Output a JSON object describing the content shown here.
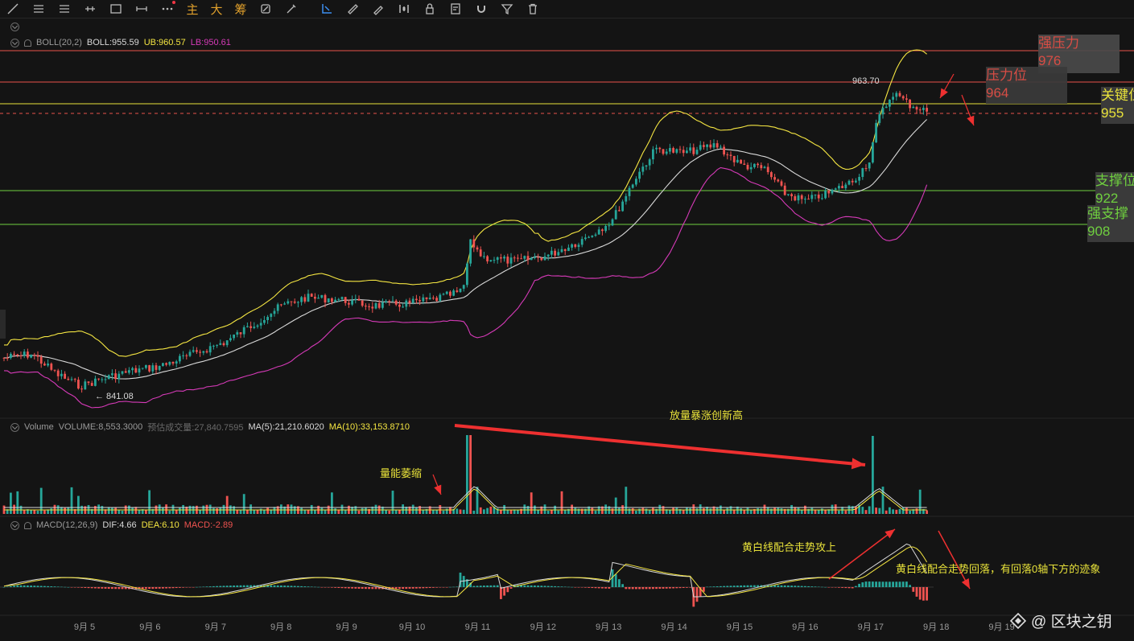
{
  "toolbar": {
    "icons": [
      "trend-line-icon",
      "horizontal-lines-icon",
      "parallel-lines-icon",
      "cross-line-icon",
      "rectangle-icon",
      "range-icon",
      "more-icon",
      "main-chart-text",
      "large-text",
      "chips-text",
      "replay-icon",
      "brush-icon",
      "select-icon",
      "ruler-icon",
      "draw-icon",
      "indicator-icon",
      "lock-icon",
      "template-icon",
      "magnet-icon",
      "filter-icon",
      "delete-icon"
    ],
    "main_label": "主",
    "big_label": "大",
    "chips_label": "筹"
  },
  "boll": {
    "name": "BOLL(20,2)",
    "boll": "BOLL:955.59",
    "ub": "UB:960.57",
    "lb": "LB:950.61"
  },
  "volume": {
    "name": "Volume",
    "volume": "VOLUME:8,553.3000",
    "est": "预估成交量:27,840.7595",
    "ma5": "MA(5):21,210.6020",
    "ma10": "MA(10):33,153.8710"
  },
  "macd": {
    "name": "MACD(12,26,9)",
    "dif": "DIF:4.66",
    "dea": "DEA:6.10",
    "macd": "MACD:-2.89"
  },
  "price_marks": {
    "high": "963.70",
    "low": "← 841.08"
  },
  "levels": [
    {
      "title": "强压力",
      "value": "976",
      "color": "#e8524a"
    },
    {
      "title": "压力位",
      "value": "964",
      "color": "#e8524a"
    },
    {
      "title": "关键位",
      "value": "955",
      "color": "#e8e23a"
    },
    {
      "title": "支撑位",
      "value": "922",
      "color": "#6fcf3f"
    },
    {
      "title": "强支撑",
      "value": "908",
      "color": "#6fcf3f"
    }
  ],
  "annotations": {
    "volume_surge": "放量暴涨创新高",
    "volume_shrink": "量能萎缩",
    "macd_up": "黄白线配合走势攻上",
    "macd_down": "黄白线配合走势回落，有回落0轴下方的迹象"
  },
  "x_axis": [
    "9月 5",
    "9月 6",
    "9月 7",
    "9月 8",
    "9月 9",
    "9月 10",
    "9月 11",
    "9月 12",
    "9月 13",
    "9月 14",
    "9月 15",
    "9月 16",
    "9月 17",
    "9月 18",
    "9月 19"
  ],
  "watermark": "@ 区块之钥",
  "colors": {
    "up": "#26a69a",
    "down": "#ef5350",
    "ub": "#f5e642",
    "mid": "#d9d9d9",
    "lb": "#d63ab8"
  }
}
